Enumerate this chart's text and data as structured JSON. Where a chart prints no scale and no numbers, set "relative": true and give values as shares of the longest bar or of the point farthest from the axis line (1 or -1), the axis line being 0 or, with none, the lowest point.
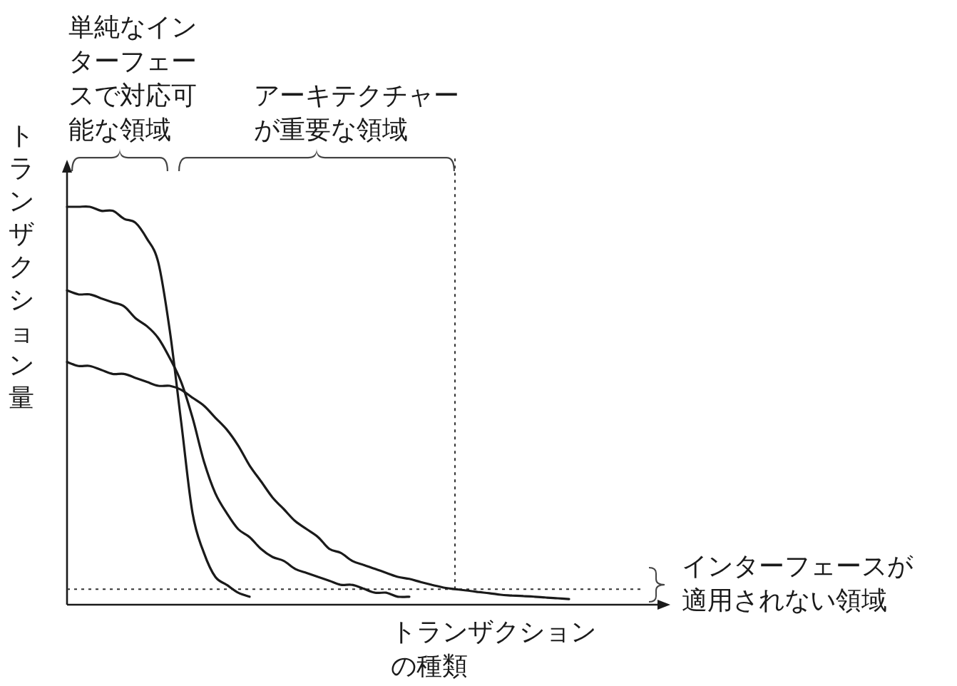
{
  "chart_data": {
    "type": "line",
    "relative": true,
    "xlabel": "トランザクションの種類",
    "ylabel": "トランザクション量",
    "categories": [
      null,
      null,
      null,
      null,
      null,
      null,
      null,
      null,
      null,
      null,
      null,
      null,
      null,
      null,
      null,
      null,
      null,
      null,
      null,
      null,
      null,
      null,
      null,
      null,
      null,
      null,
      null,
      null,
      null,
      null,
      null,
      null,
      null,
      null,
      null,
      null,
      null,
      null,
      null,
      null,
      null,
      null,
      null,
      null,
      null
    ],
    "series": [
      {
        "color": "#1a1a1a",
        "values": [
          1.0,
          1.0,
          1.0,
          0.99,
          0.99,
          0.97,
          0.96,
          0.92,
          0.86,
          0.69,
          0.46,
          0.23,
          0.13,
          0.07,
          0.05,
          0.03,
          0.02,
          null,
          null,
          null,
          null,
          null,
          null,
          null,
          null,
          null,
          null,
          null,
          null,
          null,
          null,
          null,
          null,
          null,
          null,
          null,
          null,
          null,
          null,
          null,
          null,
          null,
          null,
          null,
          null
        ]
      },
      {
        "color": "#1a1a1a",
        "values": [
          0.79,
          0.78,
          0.78,
          0.77,
          0.76,
          0.75,
          0.72,
          0.7,
          0.67,
          0.62,
          0.56,
          0.47,
          0.36,
          0.28,
          0.23,
          0.19,
          0.17,
          0.14,
          0.12,
          0.11,
          0.09,
          0.08,
          0.07,
          0.06,
          0.05,
          0.05,
          0.04,
          0.03,
          0.03,
          0.02,
          0.02,
          null,
          null,
          null,
          null,
          null,
          null,
          null,
          null,
          null,
          null,
          null,
          null,
          null,
          null
        ]
      },
      {
        "color": "#1a1a1a",
        "values": [
          0.61,
          0.6,
          0.6,
          0.59,
          0.58,
          0.58,
          0.57,
          0.56,
          0.55,
          0.55,
          0.54,
          0.52,
          0.5,
          0.47,
          0.44,
          0.4,
          0.35,
          0.31,
          0.27,
          0.24,
          0.21,
          0.19,
          0.17,
          0.14,
          0.13,
          0.11,
          0.1,
          0.09,
          0.08,
          0.07,
          0.065,
          0.057,
          0.05,
          0.043,
          0.039,
          0.036,
          0.032,
          0.029,
          0.025,
          0.023,
          0.022,
          0.02,
          0.018,
          0.016,
          0.014
        ]
      }
    ],
    "ref_lines": [
      {
        "axis": "y",
        "value": 0.039,
        "line_style": "dotted"
      }
    ],
    "annotations": [
      "単純なインターフェースで対応可能な領域",
      "アーキテクチャーが重要な領域",
      "インターフェースが適用されない領域"
    ]
  }
}
